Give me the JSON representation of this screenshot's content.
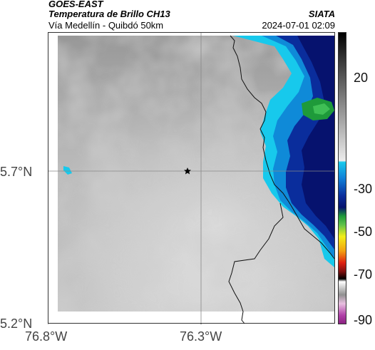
{
  "header": {
    "satellite": "GOES-EAST",
    "product": "Temperatura de Brillo CH13",
    "source": "SIATA",
    "region": "Vía Medellín - Quibdó 50km",
    "datetime": "2024-07-01 02:09"
  },
  "map": {
    "lat_labels": [
      "5.7°N",
      "5.2°N"
    ],
    "lon_labels": [
      "76.8°W",
      "76.3°W"
    ],
    "marker_icon": "star-icon"
  },
  "colorbar": {
    "tick_labels": [
      "20",
      "-30",
      "-50",
      "-70",
      "-90"
    ],
    "colors": {
      "warm_gray": "#b8b8b8",
      "cyan": "#17c9ec",
      "blue": "#0a2d9c",
      "navy": "#06126e",
      "green": "#1e9a3a",
      "yellow": "#f2ee18",
      "red": "#e02010",
      "black": "#000000",
      "magenta": "#b040a8"
    }
  }
}
